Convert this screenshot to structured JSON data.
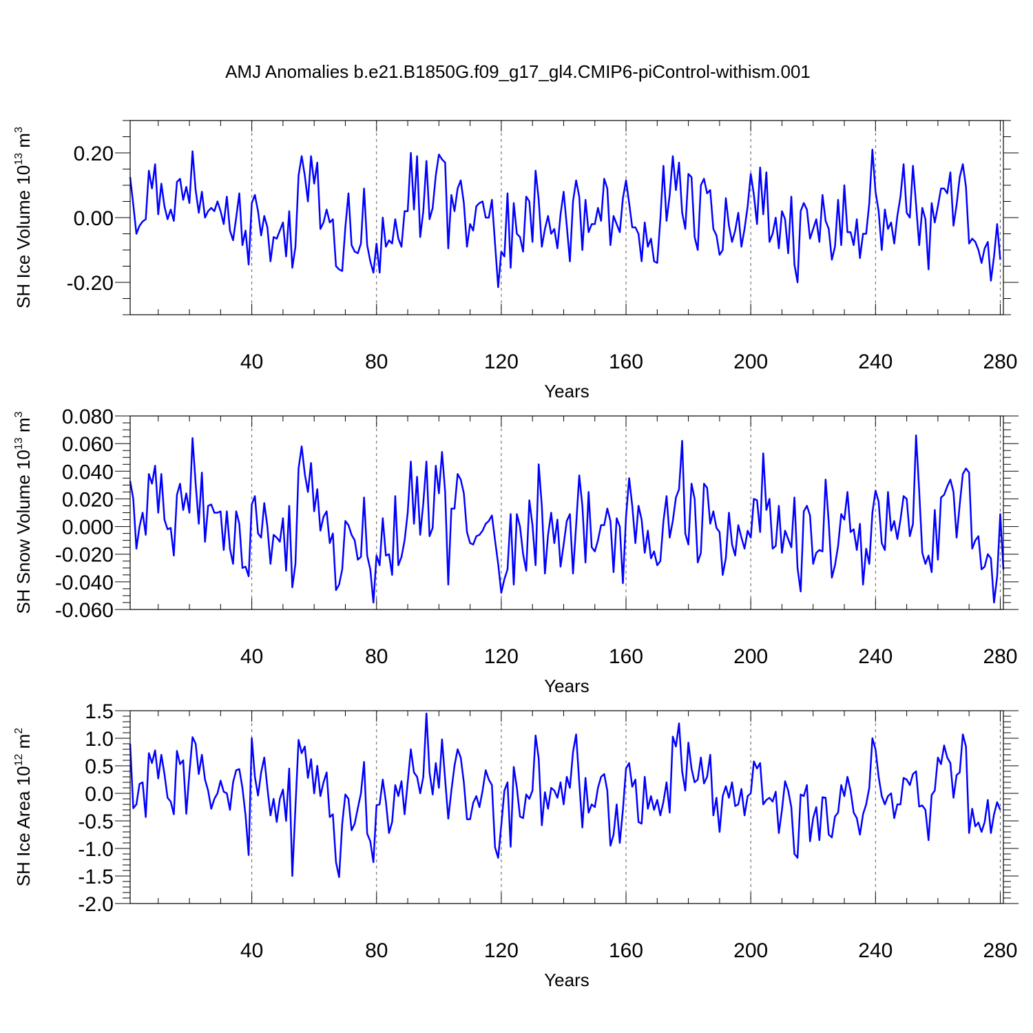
{
  "title": "AMJ Anomalies b.e21.B1850G.f09_g17_gl4.CMIP6-piControl-withism.001",
  "line_color": "#0000ff",
  "chart_data": [
    {
      "type": "line",
      "ylabel": "SH Ice Volume 10",
      "ylabel_sup": "13",
      "ylabel_unit": " m",
      "ylabel_unit_sup": "3",
      "xlabel": "Years",
      "xlim": [
        1,
        281
      ],
      "ylim": [
        -0.3,
        0.3
      ],
      "xticks": [
        40,
        80,
        120,
        160,
        200,
        240,
        280
      ],
      "yticks": [
        -0.2,
        0.0,
        0.2
      ],
      "ytick_labels": [
        "-0.20",
        "0.00",
        "0.20"
      ],
      "y_minor_step": 0.05,
      "grid": "x dashed",
      "values": [
        0.125,
        0.04,
        -0.05,
        -0.025,
        -0.012,
        -0.005,
        0.145,
        0.09,
        0.165,
        0.01,
        0.105,
        0.035,
        -0.005,
        0.025,
        -0.01,
        0.11,
        0.12,
        0.055,
        0.095,
        0.045,
        0.205,
        0.085,
        0.015,
        0.08,
        0.0,
        0.02,
        0.03,
        0.02,
        0.05,
        0.02,
        -0.02,
        0.065,
        -0.04,
        -0.07,
        0.0,
        0.075,
        -0.085,
        -0.04,
        -0.145,
        0.045,
        0.07,
        0.02,
        -0.055,
        0.005,
        -0.03,
        -0.135,
        -0.06,
        -0.065,
        -0.04,
        -0.015,
        -0.12,
        0.02,
        -0.155,
        -0.09,
        0.13,
        0.19,
        0.13,
        0.05,
        0.19,
        0.105,
        0.17,
        -0.035,
        -0.015,
        0.025,
        -0.015,
        -0.005,
        -0.15,
        -0.16,
        -0.165,
        -0.03,
        0.075,
        -0.085,
        -0.105,
        -0.11,
        -0.08,
        0.09,
        -0.085,
        -0.135,
        -0.17,
        -0.08,
        -0.17,
        0.0,
        -0.09,
        -0.07,
        -0.08,
        -0.005,
        -0.065,
        -0.09,
        0.02,
        0.02,
        0.2,
        0.025,
        0.19,
        -0.06,
        0.02,
        0.175,
        -0.005,
        0.03,
        0.13,
        0.195,
        0.18,
        0.17,
        -0.095,
        0.07,
        0.02,
        0.09,
        0.115,
        0.045,
        -0.09,
        -0.02,
        -0.04,
        0.035,
        0.045,
        0.05,
        0.0,
        0.0,
        0.055,
        -0.08,
        -0.215,
        -0.105,
        -0.12,
        0.075,
        -0.155,
        0.045,
        -0.05,
        -0.06,
        -0.105,
        0.065,
        0.05,
        -0.075,
        0.145,
        0.055,
        -0.09,
        -0.035,
        0.005,
        -0.05,
        -0.035,
        -0.095,
        0.01,
        0.08,
        -0.025,
        -0.135,
        0.05,
        0.115,
        0.065,
        -0.1,
        0.055,
        -0.045,
        -0.02,
        -0.02,
        0.03,
        -0.01,
        0.12,
        0.09,
        -0.085,
        0.005,
        -0.02,
        -0.045,
        0.06,
        0.115,
        0.045,
        -0.03,
        -0.03,
        -0.05,
        -0.135,
        -0.015,
        -0.09,
        -0.065,
        -0.135,
        -0.14,
        -0.005,
        0.16,
        -0.01,
        0.07,
        0.19,
        0.085,
        0.17,
        0.015,
        -0.035,
        0.135,
        0.125,
        -0.06,
        -0.1,
        0.1,
        0.12,
        0.075,
        0.085,
        -0.035,
        -0.055,
        -0.115,
        -0.1,
        0.06,
        -0.025,
        -0.075,
        -0.04,
        0.015,
        -0.09,
        -0.035,
        0.035,
        0.135,
        0.07,
        -0.02,
        0.155,
        0.01,
        0.14,
        -0.075,
        -0.05,
        0.0,
        -0.095,
        0.02,
        -0.005,
        -0.11,
        0.065,
        -0.145,
        -0.2,
        0.02,
        0.045,
        0.025,
        -0.065,
        -0.035,
        -0.005,
        -0.075,
        0.07,
        -0.01,
        -0.035,
        -0.13,
        -0.09,
        0.055,
        -0.085,
        0.1,
        -0.045,
        -0.045,
        -0.085,
        -0.005,
        -0.125,
        -0.05,
        -0.05,
        0.045,
        0.21,
        0.08,
        0.02,
        -0.1,
        0.025,
        -0.035,
        -0.015,
        -0.08,
        0.005,
        0.065,
        0.165,
        0.015,
        0.0,
        0.16,
        0.04,
        -0.085,
        0.03,
        -0.005,
        -0.16,
        0.045,
        -0.015,
        0.035,
        0.09,
        0.09,
        0.075,
        0.14,
        -0.025,
        0.04,
        0.125,
        0.165,
        0.095,
        -0.08,
        -0.065,
        -0.075,
        -0.1,
        -0.14,
        -0.095,
        -0.075,
        -0.195,
        -0.12,
        -0.02,
        -0.13
      ]
    },
    {
      "type": "line",
      "ylabel": "SH Snow Volume 10",
      "ylabel_sup": "13",
      "ylabel_unit": " m",
      "ylabel_unit_sup": "3",
      "xlabel": "Years",
      "xlim": [
        1,
        281
      ],
      "ylim": [
        -0.06,
        0.08
      ],
      "xticks": [
        40,
        80,
        120,
        160,
        200,
        240,
        280
      ],
      "yticks": [
        -0.06,
        -0.04,
        -0.02,
        0.0,
        0.02,
        0.04,
        0.06,
        0.08
      ],
      "ytick_labels": [
        "-0.060",
        "-0.040",
        "-0.020",
        "0.000",
        "0.020",
        "0.040",
        "0.060",
        "0.080"
      ],
      "y_minor_step": 0.005,
      "grid": "x dashed",
      "values": [
        0.033,
        0.02,
        -0.016,
        0.0,
        0.01,
        -0.006,
        0.038,
        0.031,
        0.044,
        0.01,
        0.038,
        0.005,
        -0.002,
        -0.001,
        -0.021,
        0.023,
        0.031,
        0.012,
        0.024,
        0.01,
        0.064,
        0.031,
        0.002,
        0.039,
        -0.011,
        0.015,
        0.016,
        0.01,
        0.01,
        0.011,
        -0.017,
        0.011,
        -0.016,
        -0.027,
        0.011,
        0.002,
        -0.03,
        -0.029,
        -0.036,
        0.016,
        0.022,
        -0.005,
        -0.008,
        0.017,
        0.0,
        -0.027,
        -0.006,
        -0.008,
        -0.011,
        0.006,
        -0.032,
        0.015,
        -0.044,
        -0.027,
        0.042,
        0.058,
        0.038,
        0.025,
        0.046,
        0.011,
        0.027,
        -0.003,
        0.007,
        0.011,
        -0.012,
        -0.005,
        -0.046,
        -0.042,
        -0.031,
        0.004,
        0.001,
        -0.006,
        -0.01,
        -0.024,
        -0.022,
        0.021,
        -0.021,
        -0.031,
        -0.055,
        -0.021,
        -0.028,
        0.006,
        -0.021,
        -0.02,
        -0.035,
        0.022,
        -0.028,
        -0.022,
        -0.01,
        0.01,
        0.047,
        0.002,
        0.036,
        -0.006,
        0.017,
        0.047,
        -0.007,
        -0.001,
        0.044,
        0.024,
        0.054,
        0.025,
        -0.042,
        0.013,
        0.013,
        0.038,
        0.034,
        0.024,
        -0.004,
        -0.012,
        -0.013,
        -0.007,
        -0.006,
        -0.003,
        0.002,
        0.004,
        0.008,
        -0.01,
        -0.027,
        -0.048,
        -0.038,
        -0.031,
        0.009,
        -0.042,
        0.009,
        0.0,
        -0.02,
        -0.032,
        0.019,
        0.001,
        -0.028,
        0.045,
        0.015,
        -0.034,
        -0.006,
        0.01,
        -0.012,
        0.005,
        -0.029,
        -0.013,
        0.004,
        0.009,
        -0.034,
        0.001,
        0.037,
        0.015,
        -0.026,
        0.025,
        -0.015,
        -0.018,
        -0.01,
        0.001,
        0.001,
        0.013,
        0.004,
        -0.033,
        0.006,
        0.0,
        -0.041,
        0.007,
        0.035,
        0.015,
        -0.012,
        0.015,
        0.005,
        -0.019,
        -0.003,
        -0.023,
        -0.018,
        -0.028,
        -0.025,
        0.004,
        0.022,
        -0.008,
        0.004,
        0.021,
        0.027,
        0.062,
        -0.005,
        -0.013,
        0.031,
        0.02,
        -0.026,
        -0.019,
        0.031,
        0.028,
        0.002,
        0.011,
        -0.001,
        -0.004,
        -0.035,
        -0.023,
        0.01,
        -0.013,
        -0.021,
        0.001,
        -0.008,
        -0.016,
        -0.003,
        -0.008,
        0.02,
        0.019,
        -0.004,
        0.053,
        0.012,
        0.02,
        -0.016,
        -0.014,
        0.015,
        -0.019,
        -0.003,
        -0.009,
        -0.015,
        0.021,
        -0.03,
        -0.047,
        0.011,
        0.015,
        0.008,
        -0.027,
        -0.019,
        -0.017,
        -0.018,
        0.034,
        0.003,
        -0.037,
        -0.028,
        -0.014,
        0.009,
        0.005,
        0.025,
        -0.004,
        -0.002,
        -0.017,
        0.002,
        -0.042,
        -0.016,
        -0.027,
        0.01,
        0.026,
        0.018,
        -0.012,
        -0.017,
        0.025,
        -0.003,
        0.004,
        -0.009,
        0.005,
        0.022,
        0.02,
        -0.007,
        0.002,
        0.066,
        0.026,
        -0.019,
        -0.027,
        -0.021,
        -0.033,
        0.012,
        -0.024,
        0.021,
        0.023,
        0.029,
        0.034,
        0.025,
        -0.008,
        0.016,
        0.038,
        0.042,
        0.039,
        -0.016,
        -0.01,
        -0.007,
        -0.031,
        -0.029,
        -0.02,
        -0.023,
        -0.055,
        -0.036,
        0.009,
        -0.031
      ]
    },
    {
      "type": "line",
      "ylabel": "SH Ice Area 10",
      "ylabel_sup": "12",
      "ylabel_unit": " m",
      "ylabel_unit_sup": "2",
      "xlabel": "Years",
      "xlim": [
        1,
        281
      ],
      "ylim": [
        -2.0,
        1.5
      ],
      "xticks": [
        40,
        80,
        120,
        160,
        200,
        240,
        280
      ],
      "yticks": [
        -2.0,
        -1.5,
        -1.0,
        -0.5,
        0.0,
        0.5,
        1.0,
        1.5
      ],
      "ytick_labels": [
        "-2.0",
        "-1.5",
        "-1.0",
        "-0.5",
        "0.0",
        "0.5",
        "1.0",
        "1.5"
      ],
      "y_minor_step": 0.1,
      "grid": "x dashed",
      "values": [
        0.9,
        -0.27,
        -0.2,
        0.17,
        0.2,
        -0.43,
        0.73,
        0.55,
        0.78,
        0.27,
        0.7,
        0.35,
        -0.08,
        -0.15,
        -0.38,
        0.77,
        0.53,
        0.6,
        -0.37,
        0.37,
        1.02,
        0.9,
        0.35,
        0.7,
        0.25,
        0.05,
        -0.28,
        -0.1,
        0.0,
        0.23,
        0.03,
        0.0,
        -0.3,
        0.2,
        0.42,
        0.44,
        0.1,
        -0.4,
        -1.12,
        1.0,
        0.3,
        -0.04,
        0.38,
        0.65,
        0.1,
        -0.4,
        -0.1,
        -0.52,
        -0.1,
        0.07,
        -0.5,
        0.45,
        -1.5,
        -0.25,
        0.97,
        0.73,
        0.85,
        0.28,
        0.62,
        0.0,
        0.5,
        -0.05,
        0.2,
        0.38,
        -0.43,
        -0.38,
        -1.25,
        -1.52,
        -0.55,
        -0.02,
        -0.1,
        -0.67,
        -0.55,
        -0.27,
        0.0,
        0.57,
        -0.73,
        -0.87,
        -1.25,
        -0.22,
        -0.2,
        0.25,
        -0.15,
        -0.72,
        -0.52,
        0.15,
        -0.05,
        0.22,
        -0.38,
        0.2,
        0.8,
        0.38,
        0.3,
        0.0,
        0.3,
        1.45,
        0.38,
        -0.02,
        0.55,
        0.1,
        0.98,
        0.25,
        -0.46,
        0.05,
        0.5,
        0.8,
        0.65,
        0.2,
        -0.47,
        -0.47,
        -0.17,
        -0.05,
        -0.25,
        0.05,
        0.42,
        0.25,
        0.15,
        -0.98,
        -1.17,
        -0.58,
        0.05,
        0.2,
        -0.97,
        0.48,
        0.1,
        -0.42,
        -0.45,
        -0.02,
        -0.1,
        0.05,
        1.05,
        0.63,
        -0.58,
        0.02,
        -0.28,
        0.1,
        0.05,
        -0.08,
        0.2,
        -0.2,
        0.3,
        0.1,
        0.75,
        1.07,
        0.2,
        -0.62,
        0.28,
        -0.35,
        -0.2,
        -0.25,
        0.1,
        0.3,
        0.35,
        0.05,
        -0.95,
        -0.75,
        -0.2,
        -0.9,
        -0.3,
        0.45,
        0.55,
        0.12,
        0.25,
        -0.52,
        -0.55,
        0.3,
        -0.28,
        -0.05,
        -0.3,
        -0.12,
        -0.4,
        -0.15,
        0.2,
        -0.35,
        1.03,
        0.85,
        1.27,
        0.4,
        0.05,
        0.92,
        0.45,
        0.2,
        0.25,
        0.65,
        0.18,
        0.3,
        0.7,
        -0.4,
        -0.08,
        -0.7,
        -0.05,
        0.13,
        -0.08,
        0.2,
        -0.23,
        -0.2,
        0.08,
        -0.4,
        -0.05,
        0.0,
        0.58,
        0.45,
        0.55,
        -0.2,
        -0.12,
        -0.08,
        -0.15,
        0.03,
        -0.72,
        -0.3,
        0.22,
        0.05,
        -0.25,
        -1.1,
        -1.17,
        -0.02,
        -0.05,
        0.15,
        -0.87,
        -0.45,
        -0.25,
        -0.85,
        -0.07,
        -0.08,
        -0.75,
        -0.8,
        -0.42,
        -0.35,
        0.15,
        -0.05,
        0.3,
        0.05,
        -0.35,
        -0.45,
        -0.75,
        -0.38,
        -0.2,
        0.1,
        1.0,
        0.8,
        0.3,
        -0.05,
        -0.2,
        -0.05,
        0.0,
        -0.45,
        -0.2,
        -0.2,
        0.28,
        0.25,
        0.15,
        0.35,
        0.4,
        -0.24,
        -0.22,
        -0.3,
        -0.85,
        -0.03,
        0.05,
        0.65,
        0.53,
        0.87,
        0.65,
        0.55,
        -0.08,
        0.33,
        0.38,
        1.07,
        0.85,
        -0.72,
        -0.28,
        -0.6,
        -0.53,
        -0.7,
        -0.52,
        -0.12,
        -0.72,
        -0.38,
        -0.16,
        -0.3
      ]
    }
  ]
}
